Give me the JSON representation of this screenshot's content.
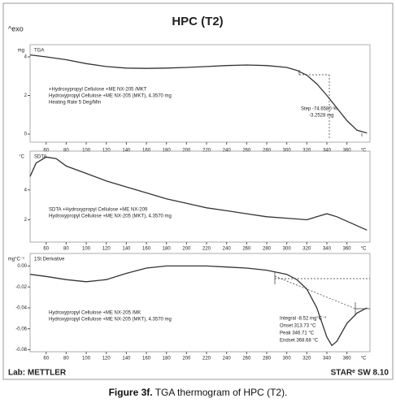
{
  "header": {
    "title": "HPC (T2)",
    "exo": "^exo"
  },
  "chart_data": [
    {
      "type": "line",
      "y_unit": "mg",
      "panel_label": "TGA",
      "x_unit": "°C",
      "x": [
        44,
        60,
        80,
        100,
        120,
        140,
        160,
        180,
        200,
        220,
        240,
        260,
        280,
        300,
        310,
        320,
        330,
        340,
        350,
        360,
        370,
        380
      ],
      "series": [
        {
          "color": "#333333",
          "values": [
            4.1,
            4.0,
            3.85,
            3.65,
            3.5,
            3.42,
            3.4,
            3.42,
            3.45,
            3.5,
            3.55,
            3.58,
            3.55,
            3.45,
            3.3,
            3.05,
            2.6,
            2.0,
            1.35,
            0.7,
            0.2,
            0.05
          ]
        }
      ],
      "xlim": [
        44,
        383
      ],
      "xticks": [
        60,
        80,
        100,
        120,
        140,
        160,
        180,
        200,
        220,
        240,
        260,
        280,
        300,
        320,
        340,
        360
      ],
      "ylim": [
        -0.42,
        4.63
      ],
      "yticks": [
        0,
        2,
        4
      ],
      "annotations": [
        "+Hydroxypropyl Cellulose +ME NX-205 /MKT",
        "Hydroxypropyl Cellulose +ME NX-205 (MKT), 4.3570 mg",
        "Heating Rate 5 Deg/Min",
        "Step   -74.6580 %",
        "-3.2528 mg"
      ]
    },
    {
      "type": "line",
      "y_unit": "°C",
      "panel_label": "SDTA",
      "x_unit": "°C",
      "x": [
        44,
        50,
        60,
        70,
        80,
        100,
        120,
        140,
        160,
        180,
        200,
        220,
        240,
        260,
        280,
        300,
        320,
        330,
        340,
        350,
        360,
        370,
        380
      ],
      "series": [
        {
          "color": "#333333",
          "values": [
            4.9,
            5.8,
            6.2,
            6.1,
            5.6,
            5.1,
            4.6,
            4.2,
            3.8,
            3.4,
            3.1,
            2.8,
            2.6,
            2.4,
            2.2,
            2.1,
            2.0,
            2.2,
            2.4,
            2.2,
            1.9,
            1.6,
            1.3
          ]
        }
      ],
      "xlim": [
        44,
        383
      ],
      "xticks": [
        60,
        80,
        100,
        120,
        140,
        160,
        180,
        200,
        220,
        240,
        260,
        280,
        300,
        320,
        340,
        360
      ],
      "ylim": [
        0.5,
        6.6
      ],
      "yticks": [
        2,
        4
      ],
      "annotations": [
        "SDTA +Hydroxypropyl Cellulose +ME NX-209",
        "Hydroxypropyl Cellulose +ME NX-205 (MKT), 4.3570 mg"
      ]
    },
    {
      "type": "line",
      "y_unit": "mg°C⁻¹",
      "panel_label": "1St Derivative",
      "x_unit": "°C",
      "x": [
        44,
        60,
        80,
        100,
        120,
        140,
        160,
        180,
        200,
        220,
        240,
        260,
        280,
        300,
        310,
        320,
        330,
        340,
        345,
        350,
        360,
        370,
        380
      ],
      "series": [
        {
          "color": "#333333",
          "values": [
            -0.008,
            -0.01,
            -0.013,
            -0.015,
            -0.013,
            -0.007,
            -0.002,
            0.0,
            0.0,
            0.0,
            -0.001,
            -0.002,
            -0.004,
            -0.008,
            -0.013,
            -0.022,
            -0.04,
            -0.068,
            -0.076,
            -0.072,
            -0.055,
            -0.045,
            -0.04
          ]
        }
      ],
      "xlim": [
        44,
        383
      ],
      "xticks": [
        60,
        80,
        100,
        120,
        140,
        160,
        180,
        200,
        220,
        240,
        260,
        280,
        300,
        320,
        340,
        360
      ],
      "ylim": [
        -0.082,
        0.012
      ],
      "yticks": [
        {
          "value": 0,
          "label": "0.00"
        },
        -0.02,
        -0.04,
        -0.06,
        -0.08
      ],
      "annotations": [
        "Hydroxypropyl Cellulose +ME NX-205 /MK",
        "Hydroxypropyl Cellulose +ME NX-205 (MKT), 4.3570 mg",
        "Integral   -8.52 mg°C⁻¹",
        "Onset   313.73 °C",
        "Peak   346.71 °C",
        "Endset   368.68 °C"
      ]
    }
  ],
  "footer": {
    "lab": "Lab: METTLER",
    "software": "STARᵉ SW 8.10"
  },
  "caption": {
    "label": "Figure 3f.",
    "text": "TGA thermogram of HPC (T2)."
  }
}
